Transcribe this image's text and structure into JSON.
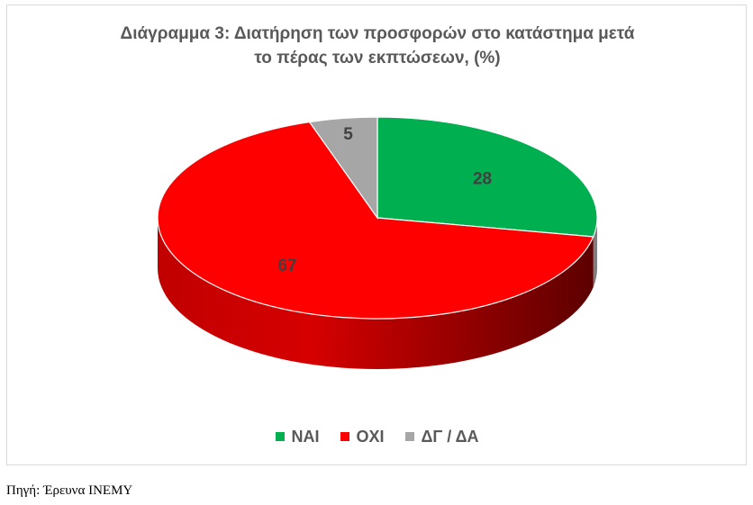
{
  "chart_data": {
    "type": "pie",
    "title_line1": "Διάγραμμα 3: Διατήρηση των προσφορών στο κατάστημα μετά",
    "title_line2": "το πέρας των εκπτώσεων, (%)",
    "categories": [
      "ΝΑΙ",
      "ΟΧΙ",
      "ΔΓ / ΔΑ"
    ],
    "values": [
      28,
      67,
      5
    ],
    "data_labels": [
      "28",
      "67",
      "5"
    ],
    "colors": [
      "#00b050",
      "#ff0000",
      "#a6a6a6"
    ],
    "style": "3d",
    "legend_position": "bottom"
  },
  "source": "Πηγή: Έρευνα ΙΝΕΜΥ"
}
